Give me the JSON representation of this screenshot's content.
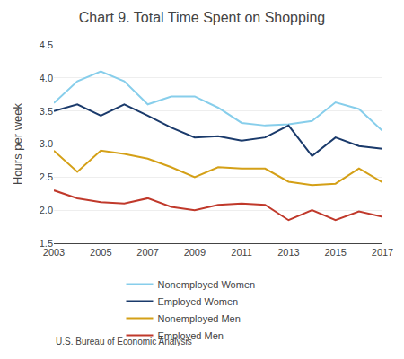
{
  "chart_data": {
    "type": "line",
    "title": "Chart 9. Total Time Spent on Shopping",
    "ylabel": "Hours per week",
    "annotations": [
      "U.S. Bureau of Economic Analysis"
    ],
    "x": [
      2003,
      2004,
      2005,
      2006,
      2007,
      2008,
      2009,
      2010,
      2011,
      2012,
      2013,
      2014,
      2015,
      2016,
      2017
    ],
    "series": [
      {
        "name": "Nonemployed Women",
        "color": "#87CEEB",
        "values": [
          3.62,
          3.95,
          4.1,
          3.95,
          3.6,
          3.72,
          3.72,
          3.55,
          3.32,
          3.28,
          3.3,
          3.35,
          3.63,
          3.53,
          3.2
        ]
      },
      {
        "name": "Employed Women",
        "color": "#1A3A6B",
        "values": [
          3.5,
          3.6,
          3.43,
          3.6,
          3.43,
          3.25,
          3.1,
          3.12,
          3.05,
          3.1,
          3.28,
          2.82,
          3.1,
          2.97,
          2.93
        ]
      },
      {
        "name": "Nonemployed Men",
        "color": "#D4A017",
        "values": [
          2.9,
          2.58,
          2.9,
          2.85,
          2.78,
          2.65,
          2.5,
          2.65,
          2.63,
          2.63,
          2.43,
          2.38,
          2.4,
          2.63,
          2.42
        ]
      },
      {
        "name": "Employed Men",
        "color": "#C0392B",
        "values": [
          2.3,
          2.18,
          2.12,
          2.1,
          2.18,
          2.05,
          2.0,
          2.08,
          2.1,
          2.08,
          1.85,
          2.0,
          1.85,
          1.98,
          1.9
        ]
      }
    ],
    "xlim": [
      2003,
      2017
    ],
    "xticks": [
      2003,
      2005,
      2007,
      2009,
      2011,
      2013,
      2015,
      2017
    ],
    "ylim": [
      1.5,
      4.5
    ],
    "yticks": [
      1.5,
      {
        "value": 2,
        "label": "2.0"
      },
      2.5,
      {
        "value": 3,
        "label": "3.0"
      },
      3.5,
      {
        "value": 4,
        "label": "4.0"
      },
      4.5
    ],
    "grid": true,
    "legend": "bottom"
  }
}
